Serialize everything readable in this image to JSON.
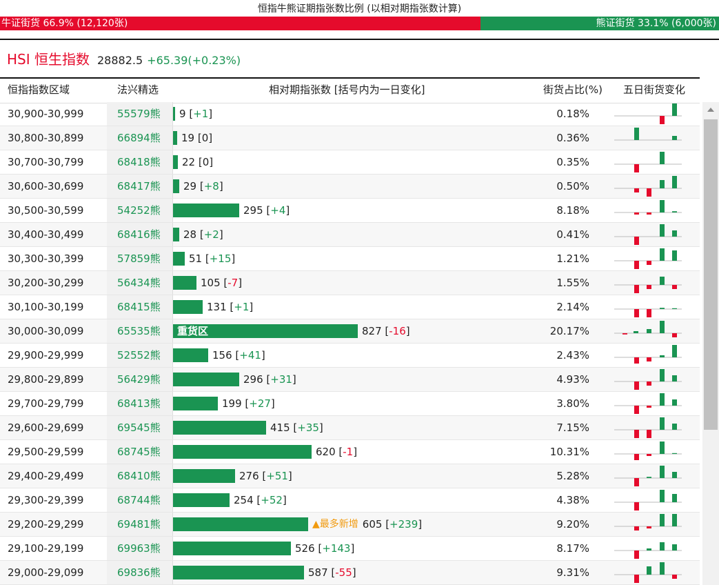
{
  "header": {
    "title": "恒指牛熊证期指张数比例 (以相对期指张数计算)",
    "bull_label": "牛证街货 66.9% (12,120张)",
    "bear_label": "熊证街货 33.1% (6,000张)",
    "bull_fraction": 0.669
  },
  "index": {
    "name": "HSI 恒生指数",
    "price": "28882.5",
    "change": "+65.39(+0.23%)"
  },
  "columns": {
    "range": "恒指指数区域",
    "fx": "法兴精选",
    "contracts": "相对期指张数 [括号内为一日变化]",
    "pct": "街货占比(%)",
    "five_day": "五日街货变化"
  },
  "colors": {
    "bull_red": "#e50b2c",
    "bear_green": "#1a9452",
    "highlight": "#f19a0e"
  },
  "rows": [
    {
      "range": "30,900-30,999",
      "code": "55579熊",
      "contracts": 9,
      "contracts_label": "9",
      "delta": "+1",
      "pct": "0.18%",
      "spark": [
        0,
        0,
        -3,
        3
      ]
    },
    {
      "range": "30,800-30,899",
      "code": "66894熊",
      "contracts": 19,
      "contracts_label": "19",
      "delta": "0",
      "pct": "0.36%",
      "spark": [
        3,
        0,
        0,
        1
      ]
    },
    {
      "range": "30,700-30,799",
      "code": "68418熊",
      "contracts": 22,
      "contracts_label": "22",
      "delta": "0",
      "pct": "0.35%",
      "spark": [
        -3,
        0,
        3,
        0
      ]
    },
    {
      "range": "30,600-30,699",
      "code": "68417熊",
      "contracts": 29,
      "contracts_label": "29",
      "delta": "+8",
      "pct": "0.50%",
      "spark": [
        -1,
        -2,
        2,
        3
      ]
    },
    {
      "range": "30,500-30,599",
      "code": "54252熊",
      "contracts": 295,
      "contracts_label": "295",
      "delta": "+4",
      "pct": "8.18%",
      "spark": [
        -0.5,
        -0.5,
        3,
        0.3
      ]
    },
    {
      "range": "30,400-30,499",
      "code": "68416熊",
      "contracts": 28,
      "contracts_label": "28",
      "delta": "+2",
      "pct": "0.41%",
      "spark": [
        -3,
        0,
        3,
        1.5
      ]
    },
    {
      "range": "30,300-30,399",
      "code": "57859熊",
      "contracts": 51,
      "contracts_label": "51",
      "delta": "+15",
      "pct": "1.21%",
      "spark": [
        -2,
        -1,
        3,
        2.5
      ]
    },
    {
      "range": "30,200-30,299",
      "code": "56434熊",
      "contracts": 105,
      "contracts_label": "105",
      "delta": "-7",
      "pct": "1.55%",
      "spark": [
        -3,
        -1,
        2,
        -1
      ]
    },
    {
      "range": "30,100-30,199",
      "code": "68415熊",
      "contracts": 131,
      "contracts_label": "131",
      "delta": "+1",
      "pct": "2.14%",
      "spark": [
        -3,
        -3,
        0.3,
        0.2
      ]
    },
    {
      "range": "30,000-30,099",
      "code": "65535熊",
      "contracts": 827,
      "contracts_label": "827",
      "delta": "-16",
      "pct": "20.17%",
      "spark": [
        -0.3,
        0.5,
        1,
        3,
        -1
      ],
      "heavy_label": "重货区"
    },
    {
      "range": "29,900-29,999",
      "code": "52552熊",
      "contracts": 156,
      "contracts_label": "156",
      "delta": "+41",
      "pct": "2.43%",
      "spark": [
        -1.5,
        -1,
        0.5,
        3
      ]
    },
    {
      "range": "29,800-29,899",
      "code": "56429熊",
      "contracts": 296,
      "contracts_label": "296",
      "delta": "+31",
      "pct": "4.93%",
      "spark": [
        -2,
        -1,
        3,
        1.5
      ]
    },
    {
      "range": "29,700-29,799",
      "code": "68413熊",
      "contracts": 199,
      "contracts_label": "199",
      "delta": "+27",
      "pct": "3.80%",
      "spark": [
        -2,
        -0.5,
        3,
        1.5
      ]
    },
    {
      "range": "29,600-29,699",
      "code": "69545熊",
      "contracts": 415,
      "contracts_label": "415",
      "delta": "+35",
      "pct": "7.15%",
      "spark": [
        -2,
        -2.5,
        3,
        1.5
      ]
    },
    {
      "range": "29,500-29,599",
      "code": "68745熊",
      "contracts": 620,
      "contracts_label": "620",
      "delta": "-1",
      "pct": "10.31%",
      "spark": [
        -1.5,
        -0.5,
        3,
        0.2
      ]
    },
    {
      "range": "29,400-29,499",
      "code": "68410熊",
      "contracts": 276,
      "contracts_label": "276",
      "delta": "+51",
      "pct": "5.28%",
      "spark": [
        -2,
        0.3,
        3,
        1.5
      ]
    },
    {
      "range": "29,300-29,399",
      "code": "68744熊",
      "contracts": 254,
      "contracts_label": "254",
      "delta": "+52",
      "pct": "4.38%",
      "spark": [
        -2,
        0,
        3,
        2
      ]
    },
    {
      "range": "29,200-29,299",
      "code": "69481熊",
      "contracts": 605,
      "contracts_label": "605",
      "delta": "+239",
      "pct": "9.20%",
      "spark": [
        -1,
        -0.5,
        3,
        3
      ],
      "hot_label": "▲最多新增"
    },
    {
      "range": "29,100-29,199",
      "code": "69963熊",
      "contracts": 526,
      "contracts_label": "526",
      "delta": "+143",
      "pct": "8.17%",
      "spark": [
        -2,
        0.5,
        2,
        1.5
      ]
    },
    {
      "range": "29,000-29,099",
      "code": "69836熊",
      "contracts": 587,
      "contracts_label": "587",
      "delta": "-55",
      "pct": "9.31%",
      "spark": [
        -2,
        2,
        3,
        -1
      ]
    }
  ]
}
